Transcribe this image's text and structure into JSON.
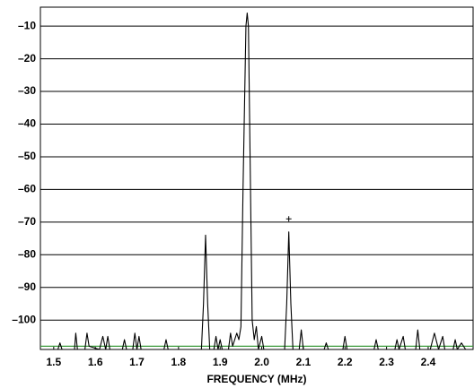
{
  "chart_data": {
    "type": "line",
    "xlabel": "FREQUENCY (MHz)",
    "color": "#000000",
    "x": [
      1.468,
      1.51,
      1.515,
      1.52,
      1.55,
      1.553,
      1.557,
      1.575,
      1.58,
      1.585,
      1.61,
      1.618,
      1.625,
      1.63,
      1.635,
      1.665,
      1.67,
      1.675,
      1.69,
      1.695,
      1.7,
      1.705,
      1.71,
      1.765,
      1.77,
      1.775,
      1.855,
      1.86,
      1.865,
      1.87,
      1.875,
      1.885,
      1.89,
      1.895,
      1.9,
      1.905,
      1.92,
      1.925,
      1.93,
      1.94,
      1.945,
      1.95,
      1.955,
      1.962,
      1.965,
      1.968,
      1.973,
      1.977,
      1.982,
      1.987,
      1.992,
      2.0,
      2.005,
      2.055,
      2.06,
      2.065,
      2.07,
      2.075,
      2.09,
      2.095,
      2.1,
      2.15,
      2.155,
      2.16,
      2.195,
      2.2,
      2.205,
      2.27,
      2.275,
      2.28,
      2.32,
      2.325,
      2.33,
      2.34,
      2.345,
      2.37,
      2.375,
      2.38,
      2.405,
      2.415,
      2.425,
      2.435,
      2.44,
      2.46,
      2.465,
      2.47,
      2.48,
      2.49,
      2.508
    ],
    "values": [
      -109,
      -109,
      -107,
      -109,
      -109,
      -104,
      -109,
      -109,
      -104,
      -108,
      -109,
      -105,
      -109,
      -105,
      -109,
      -109,
      -106,
      -109,
      -109,
      -104,
      -109,
      -105,
      -109,
      -109,
      -106,
      -109,
      -109,
      -95,
      -74,
      -95,
      -109,
      -109,
      -105,
      -109,
      -106,
      -109,
      -109,
      -104,
      -108,
      -104,
      -106,
      -102,
      -60,
      -10,
      -6,
      -10,
      -60,
      -100,
      -106,
      -102,
      -109,
      -105,
      -109,
      -109,
      -95,
      -73,
      -95,
      -109,
      -109,
      -103,
      -109,
      -109,
      -107,
      -109,
      -109,
      -105,
      -109,
      -109,
      -106,
      -109,
      -109,
      -106,
      -109,
      -105,
      -109,
      -109,
      -103,
      -109,
      -109,
      -104,
      -109,
      -105,
      -109,
      -109,
      -106,
      -109,
      -107,
      -109,
      -109
    ],
    "marker": {
      "x": 2.065,
      "y": -69
    },
    "reference_line": {
      "value": -108,
      "color": "#3a9a3a"
    },
    "xlim": [
      1.468,
      2.508
    ],
    "ylim": [
      -109,
      -4.2
    ],
    "xticks": [
      1.5,
      1.6,
      1.7,
      1.8,
      1.9,
      {
        "value": 2,
        "label": "2.0"
      },
      2.1,
      2.2,
      2.3,
      2.4
    ],
    "yticks": [
      {
        "value": -10,
        "label": "–10"
      },
      {
        "value": -20,
        "label": "–20"
      },
      {
        "value": -30,
        "label": "–30"
      },
      {
        "value": -40,
        "label": "–40"
      },
      {
        "value": -50,
        "label": "–50"
      },
      {
        "value": -60,
        "label": "–60"
      },
      {
        "value": -70,
        "label": "–70"
      },
      {
        "value": -80,
        "label": "–80"
      },
      {
        "value": -90,
        "label": "–90"
      },
      {
        "value": -100,
        "label": "–100"
      }
    ],
    "grid": true
  }
}
